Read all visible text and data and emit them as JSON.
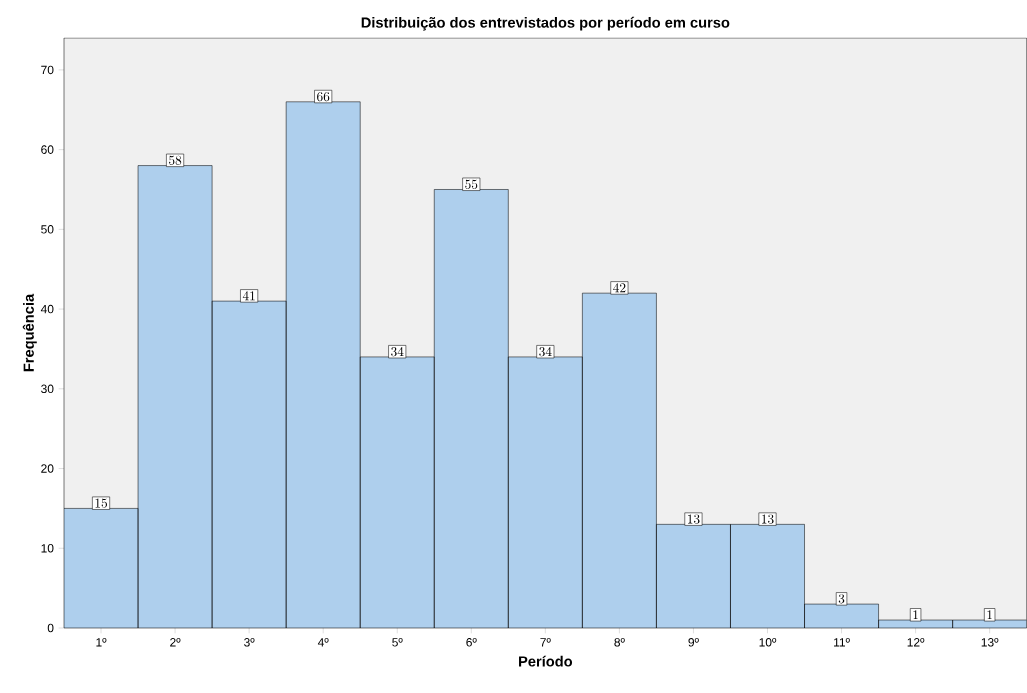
{
  "chart_data": {
    "type": "bar",
    "title": "Distribuição dos entrevistados por período em curso",
    "xlabel": "Período",
    "ylabel": "Frequência",
    "categories": [
      "1º",
      "2º",
      "3º",
      "4º",
      "5º",
      "6º",
      "7º",
      "8º",
      "9º",
      "10º",
      "11º",
      "12º",
      "13º"
    ],
    "values": [
      15,
      58,
      41,
      66,
      34,
      55,
      34,
      42,
      13,
      13,
      3,
      1,
      1
    ],
    "color": "#aecfed",
    "ylim": [
      0,
      74
    ],
    "yticks": [
      0,
      10,
      20,
      30,
      40,
      50,
      60,
      70
    ],
    "data_labels": true
  }
}
